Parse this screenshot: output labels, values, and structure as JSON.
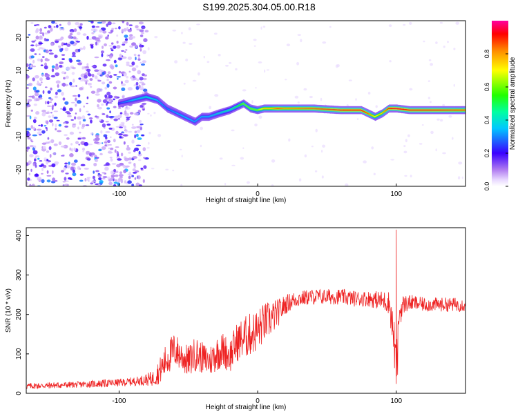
{
  "title": "S199.2025.304.05.00.R18",
  "chart_data": [
    {
      "type": "heatmap",
      "title": "S199.2025.304.05.00.R18",
      "xlabel": "Height of straight line (km)",
      "ylabel": "Frequency (Hz)",
      "xlim": [
        -167,
        150
      ],
      "ylim": [
        -25,
        25
      ],
      "xticks": [
        -100,
        0,
        100
      ],
      "yticks": [
        -20,
        -10,
        0,
        10,
        20
      ],
      "xtick_labels": [
        "-100",
        "0",
        "100"
      ],
      "ytick_labels": [
        "-20",
        "-10",
        "0",
        "10",
        "20"
      ],
      "colorbar": {
        "label": "Normalized spectral amplitude",
        "range": [
          0,
          1
        ],
        "ticks": [
          0.0,
          0.2,
          0.4,
          0.6,
          0.8
        ],
        "tick_labels": [
          "0.0",
          "0.2",
          "0.4",
          "0.6",
          "0.8"
        ]
      },
      "ridge": {
        "x": [
          -100,
          -90,
          -80,
          -72,
          -65,
          -55,
          -45,
          -40,
          -35,
          -28,
          -20,
          -15,
          -10,
          -5,
          0,
          5,
          10,
          15,
          20,
          40,
          60,
          75,
          80,
          85,
          90,
          95,
          100,
          110,
          130,
          150
        ],
        "freq": [
          0,
          1,
          2,
          1,
          -1.5,
          -3.5,
          -5.5,
          -4,
          -4,
          -3,
          -2,
          -1,
          0,
          -1.5,
          -2,
          -1.5,
          -1.5,
          -1.5,
          -1.5,
          -1.5,
          -2,
          -2,
          -3,
          -4,
          -3,
          -1.5,
          -1.5,
          -2,
          -2,
          -2
        ],
        "amplitude": [
          0.25,
          0.35,
          0.4,
          0.35,
          0.3,
          0.35,
          0.35,
          0.35,
          0.35,
          0.4,
          0.45,
          0.5,
          0.6,
          0.6,
          0.6,
          0.75,
          0.75,
          0.85,
          0.8,
          0.85,
          0.9,
          0.9,
          0.85,
          0.7,
          0.75,
          0.9,
          0.95,
          0.9,
          0.9,
          0.85
        ]
      },
      "noise_region_x": [
        -167,
        -80
      ],
      "noise_amplitude": 0.2
    },
    {
      "type": "line",
      "xlabel": "Height of straight line (km)",
      "ylabel": "SNR (10 * v/v)",
      "xlim": [
        -167,
        150
      ],
      "ylim": [
        0,
        420
      ],
      "xticks": [
        -100,
        0,
        100
      ],
      "yticks": [
        0,
        100,
        200,
        300,
        400
      ],
      "xtick_labels": [
        "-100",
        "0",
        "100"
      ],
      "ytick_labels": [
        "0",
        "100",
        "200",
        "300",
        "400"
      ],
      "series": [
        {
          "name": "SNR",
          "color": "#ee2222",
          "x": [
            -167,
            -150,
            -130,
            -110,
            -95,
            -85,
            -75,
            -70,
            -65,
            -60,
            -55,
            -50,
            -45,
            -40,
            -35,
            -30,
            -25,
            -20,
            -15,
            -10,
            -5,
            0,
            5,
            10,
            15,
            20,
            25,
            30,
            40,
            50,
            60,
            70,
            80,
            90,
            95,
            98,
            100,
            101,
            102,
            105,
            110,
            120,
            130,
            140,
            150
          ],
          "y": [
            18,
            20,
            22,
            25,
            28,
            32,
            38,
            60,
            90,
            110,
            95,
            80,
            100,
            90,
            80,
            100,
            110,
            95,
            130,
            140,
            150,
            160,
            180,
            190,
            205,
            225,
            235,
            240,
            245,
            245,
            245,
            240,
            240,
            235,
            230,
            150,
            60,
            100,
            200,
            225,
            230,
            225,
            225,
            225,
            225
          ],
          "spread": [
            8,
            8,
            8,
            10,
            10,
            12,
            20,
            35,
            45,
            45,
            40,
            40,
            45,
            40,
            40,
            45,
            45,
            45,
            50,
            55,
            55,
            55,
            50,
            45,
            35,
            25,
            22,
            20,
            20,
            20,
            20,
            20,
            20,
            25,
            30,
            60,
            60,
            60,
            40,
            25,
            20,
            18,
            18,
            18,
            18
          ]
        }
      ]
    }
  ]
}
